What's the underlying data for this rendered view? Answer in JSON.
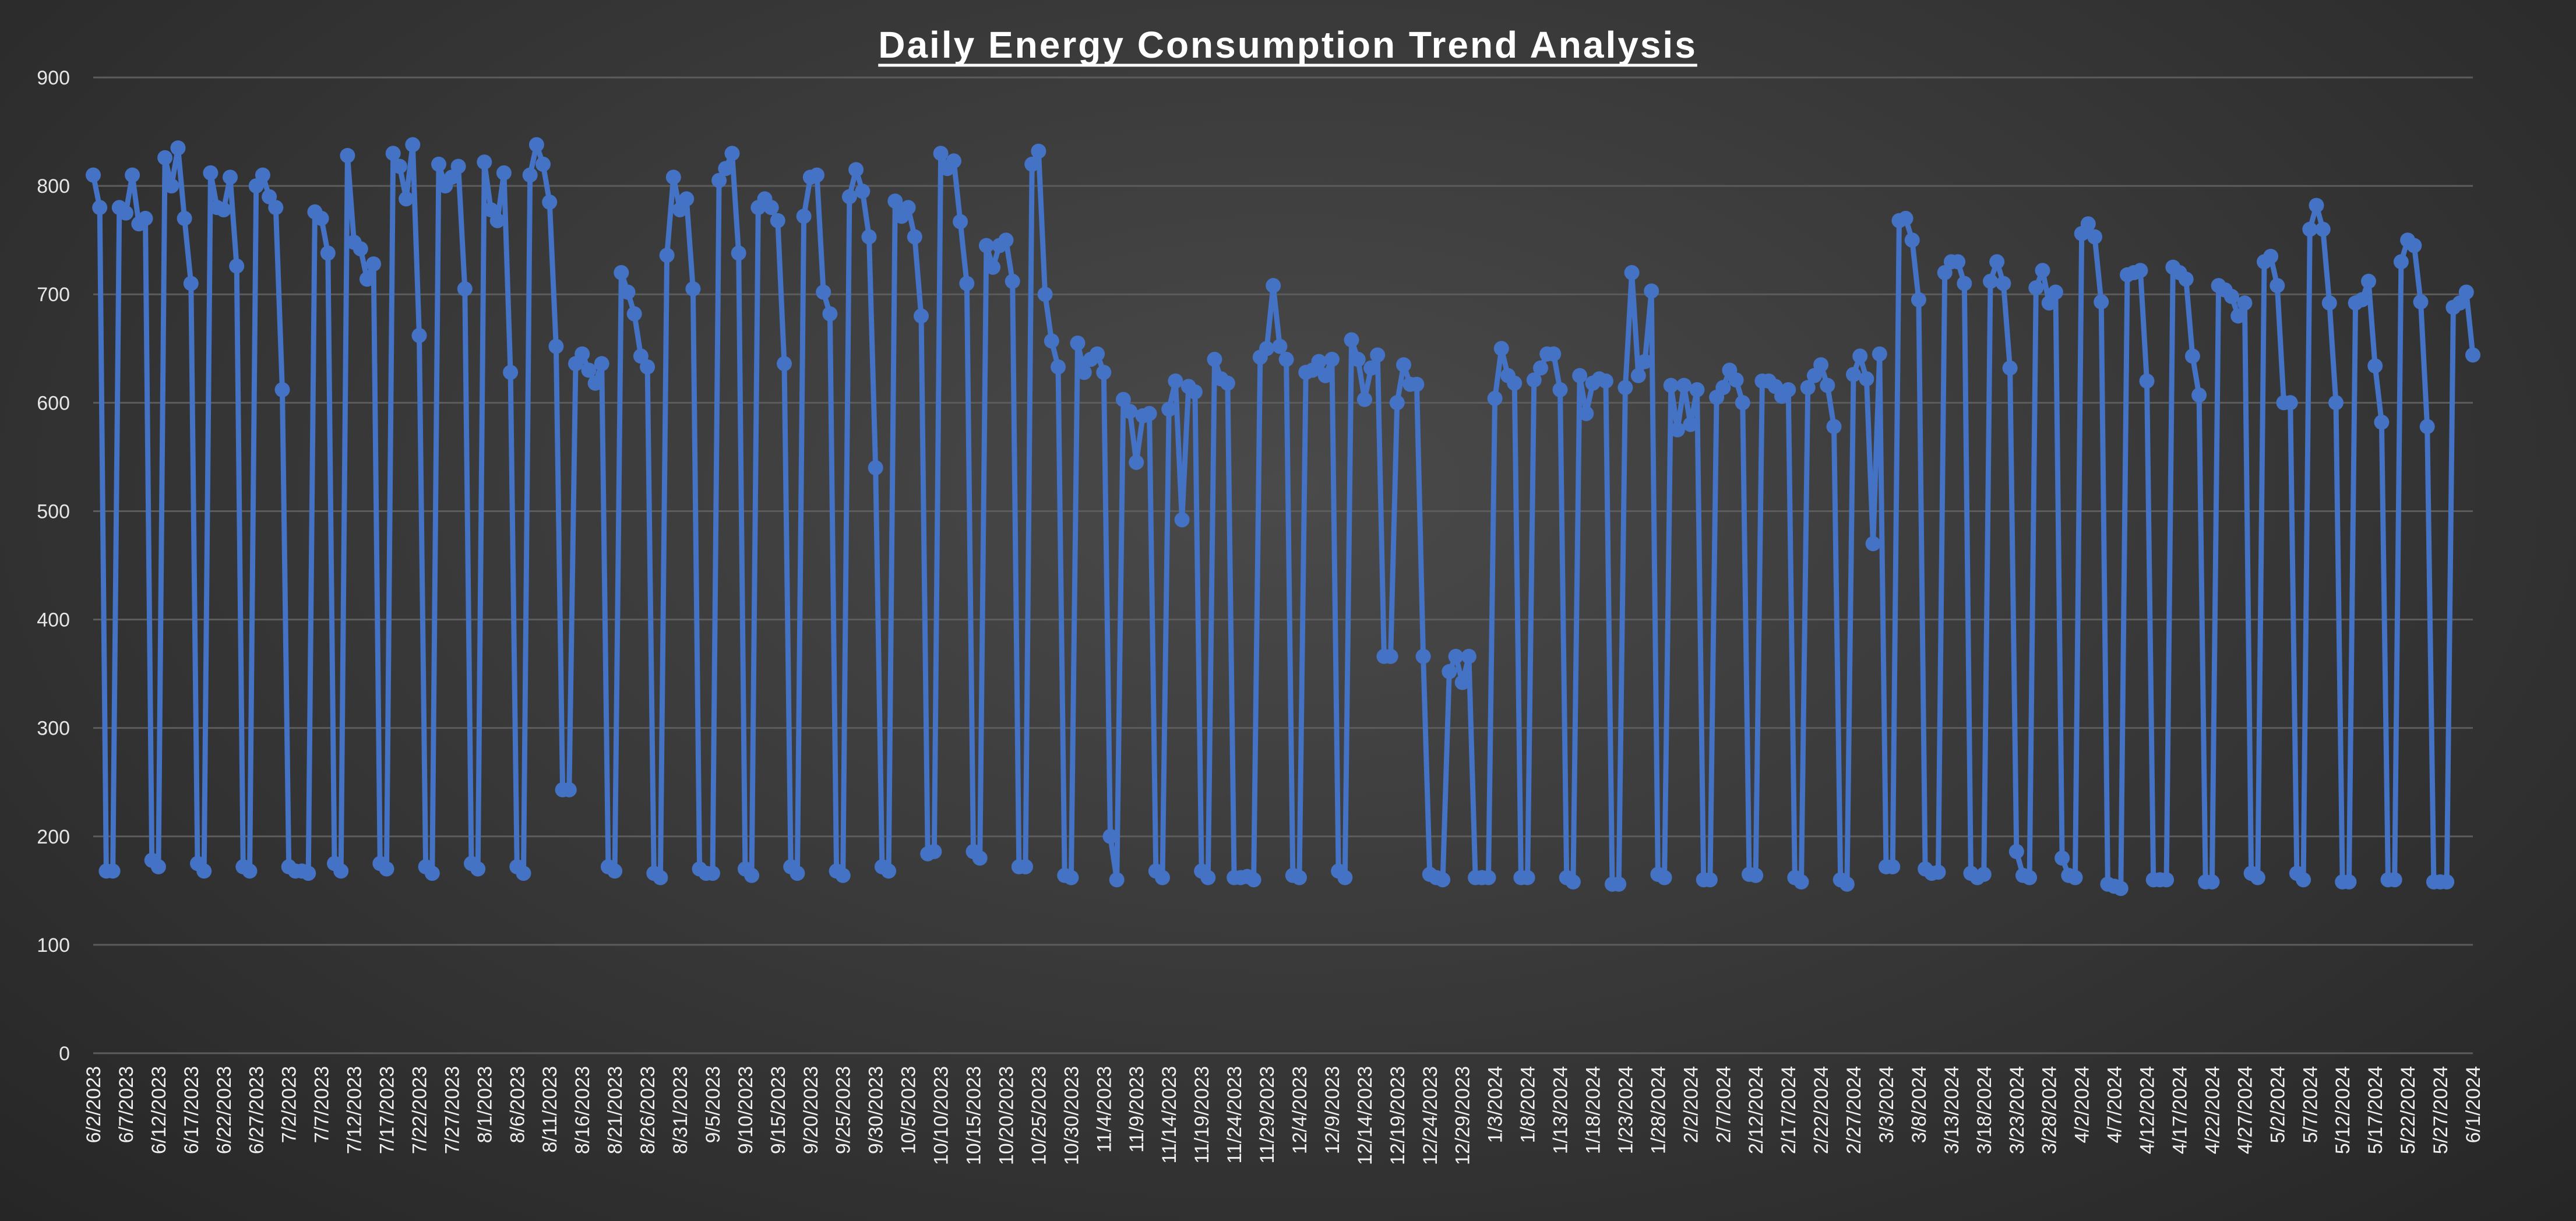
{
  "chart_data": {
    "type": "line",
    "title": "Daily Energy Consumption Trend Analysis",
    "xlabel": "",
    "ylabel": "",
    "ylim": [
      0,
      900
    ],
    "yticks": [
      "0",
      "100",
      "200",
      "300",
      "400",
      "500",
      "600",
      "700",
      "800",
      "900"
    ],
    "grid": true,
    "legend": "none",
    "series_color": "#4472C4",
    "tick_labels": [
      "6/2/2023",
      "6/7/2023",
      "6/12/2023",
      "6/17/2023",
      "6/22/2023",
      "6/27/2023",
      "7/2/2023",
      "7/7/2023",
      "7/12/2023",
      "7/17/2023",
      "7/22/2023",
      "7/27/2023",
      "8/1/2023",
      "8/6/2023",
      "8/11/2023",
      "8/16/2023",
      "8/21/2023",
      "8/26/2023",
      "8/31/2023",
      "9/5/2023",
      "9/10/2023",
      "9/15/2023",
      "9/20/2023",
      "9/25/2023",
      "9/30/2023",
      "10/5/2023",
      "10/10/2023",
      "10/15/2023",
      "10/20/2023",
      "10/25/2023",
      "10/30/2023",
      "11/4/2023",
      "11/9/2023",
      "11/14/2023",
      "11/19/2023",
      "11/24/2023",
      "11/29/2023",
      "12/4/2023",
      "12/9/2023",
      "12/14/2023",
      "12/19/2023",
      "12/24/2023",
      "12/29/2023",
      "1/3/2024",
      "1/8/2024",
      "1/13/2024",
      "1/18/2024",
      "1/23/2024",
      "1/28/2024",
      "2/2/2024",
      "2/7/2024",
      "2/12/2024",
      "2/17/2024",
      "2/22/2024",
      "2/27/2024",
      "3/3/2024",
      "3/8/2024",
      "3/13/2024",
      "3/18/2024",
      "3/23/2024",
      "3/28/2024",
      "4/2/2024",
      "4/7/2024",
      "4/12/2024",
      "4/17/2024",
      "4/22/2024",
      "4/27/2024",
      "5/2/2024",
      "5/7/2024",
      "5/12/2024",
      "5/17/2024",
      "5/22/2024",
      "5/27/2024",
      "6/1/2024"
    ],
    "x_start": "6/2/2023",
    "x_end": "6/1/2024",
    "values": [
      810,
      780,
      168,
      168,
      780,
      775,
      810,
      765,
      770,
      178,
      172,
      826,
      800,
      835,
      770,
      710,
      175,
      168,
      812,
      780,
      778,
      808,
      726,
      172,
      168,
      800,
      810,
      790,
      780,
      612,
      172,
      168,
      168,
      166,
      776,
      770,
      738,
      175,
      168,
      828,
      748,
      742,
      714,
      728,
      175,
      170,
      830,
      818,
      788,
      838,
      662,
      172,
      166,
      820,
      800,
      808,
      818,
      705,
      175,
      170,
      822,
      778,
      768,
      812,
      628,
      172,
      166,
      810,
      838,
      820,
      785,
      652,
      243,
      243,
      636,
      645,
      630,
      618,
      636,
      172,
      168,
      720,
      702,
      682,
      643,
      633,
      166,
      162,
      736,
      808,
      778,
      788,
      705,
      170,
      166,
      166,
      805,
      816,
      830,
      738,
      170,
      164,
      780,
      788,
      780,
      768,
      636,
      172,
      166,
      772,
      808,
      810,
      702,
      682,
      168,
      164,
      790,
      815,
      795,
      753,
      540,
      172,
      168,
      786,
      772,
      780,
      753,
      680,
      184,
      186,
      830,
      816,
      823,
      767,
      710,
      186,
      180,
      745,
      725,
      745,
      750,
      712,
      172,
      172,
      820,
      832,
      700,
      657,
      633,
      164,
      162,
      655,
      628,
      640,
      645,
      628,
      200,
      160,
      603,
      592,
      545,
      588,
      590,
      168,
      162,
      594,
      620,
      492,
      615,
      610,
      168,
      162,
      640,
      622,
      618,
      162,
      162,
      163,
      160,
      642,
      650,
      708,
      652,
      640,
      164,
      162,
      628,
      630,
      638,
      625,
      640,
      168,
      162,
      658,
      640,
      603,
      632,
      644,
      366,
      366,
      600,
      635,
      617,
      617,
      366,
      165,
      162,
      160,
      352,
      366,
      342,
      366,
      162,
      162,
      162,
      604,
      650,
      625,
      618,
      162,
      162,
      621,
      632,
      645,
      645,
      612,
      162,
      158,
      625,
      590,
      618,
      622,
      620,
      156,
      156,
      614,
      720,
      625,
      638,
      703,
      165,
      162,
      616,
      575,
      616,
      580,
      612,
      160,
      160,
      605,
      614,
      630,
      621,
      600,
      165,
      164,
      620,
      620,
      615,
      606,
      612,
      162,
      158,
      614,
      625,
      635,
      616,
      578,
      160,
      156,
      626,
      643,
      622,
      470,
      645,
      172,
      172,
      768,
      770,
      750,
      695,
      170,
      166,
      167,
      720,
      730,
      730,
      710,
      166,
      162,
      165,
      712,
      730,
      710,
      632,
      186,
      164,
      162,
      706,
      722,
      692,
      702,
      180,
      164,
      162,
      756,
      765,
      753,
      693,
      156,
      154,
      152,
      718,
      720,
      722,
      620,
      160,
      160,
      160,
      725,
      720,
      714,
      643,
      607,
      158,
      158,
      708,
      704,
      698,
      680,
      692,
      166,
      162,
      730,
      735,
      708,
      600,
      600,
      166,
      160,
      760,
      782,
      760,
      692,
      600,
      158,
      158,
      692,
      695,
      712,
      634,
      582,
      160,
      160,
      730,
      750,
      745,
      693,
      578,
      158,
      158,
      158,
      688,
      692,
      702,
      644
    ]
  }
}
